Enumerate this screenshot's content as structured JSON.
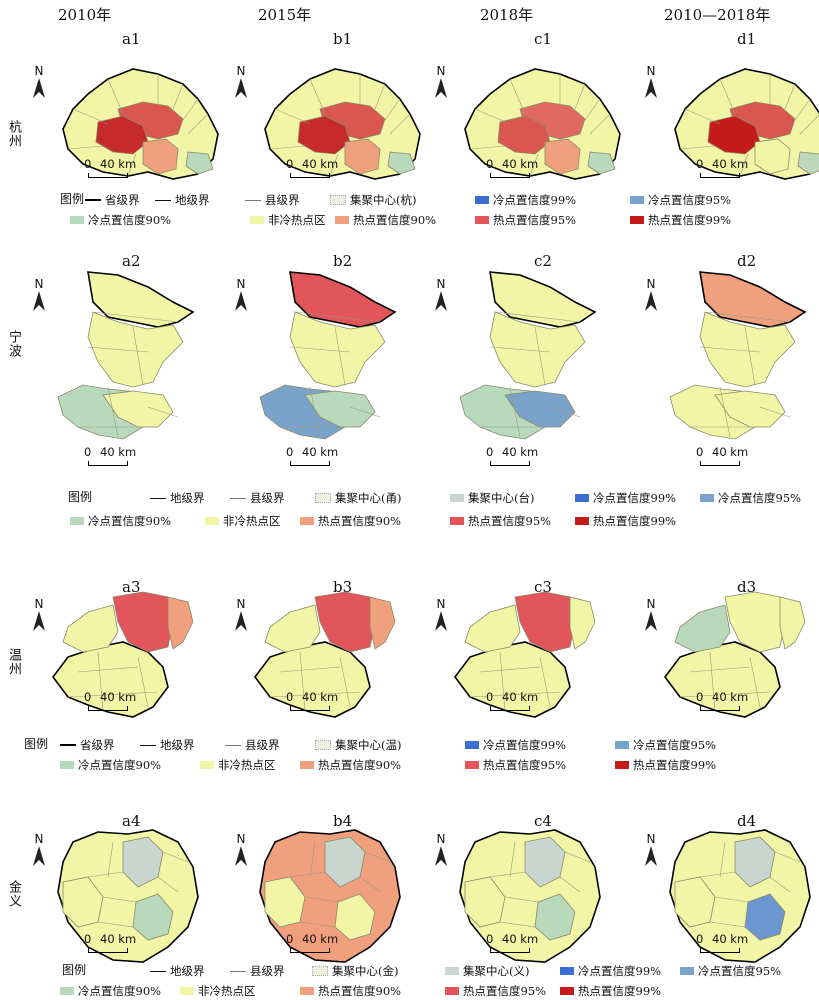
{
  "years": [
    "2010年",
    "2015年",
    "2018年",
    "2010—2018年"
  ],
  "rows": [
    {
      "city": "杭州",
      "panels": [
        {
          "label": "a1",
          "shape": "hz",
          "fills": [
            "#f2f5a5",
            "#d9574f",
            "#c72a2a",
            "#f0a07d",
            "#b9d9bc"
          ]
        },
        {
          "label": "b1",
          "shape": "hz",
          "fills": [
            "#f2f5a5",
            "#d9574f",
            "#c72a2a",
            "#f0a07d",
            "#b9d9bc"
          ]
        },
        {
          "label": "c1",
          "shape": "hz",
          "fills": [
            "#f2f5a5",
            "#e06a62",
            "#d9574f",
            "#f0a07d",
            "#b9d9bc"
          ]
        },
        {
          "label": "d1",
          "shape": "hz",
          "fills": [
            "#f2f5a5",
            "#d9574f",
            "#c41a1a",
            "#f2f5a5",
            "#bcd8b8"
          ]
        }
      ],
      "legend": {
        "title": "图例",
        "items": [
          {
            "kind": "line-thick",
            "text": "省级界"
          },
          {
            "kind": "line-mid",
            "text": "地级界"
          },
          {
            "kind": "line-thin",
            "text": "县级界"
          },
          {
            "kind": "dots",
            "color": "#efefe0",
            "text": "集聚中心(杭)"
          },
          {
            "kind": "swatch",
            "color": "#3a6ed2",
            "text": "冷点置信度99%"
          },
          {
            "kind": "swatch",
            "color": "#7aa3cc",
            "text": "冷点置信度95%"
          },
          {
            "kind": "swatch",
            "color": "#b9d9bc",
            "text": "冷点置信度90%"
          },
          {
            "kind": "swatch",
            "color": "#f2f5a5",
            "text": "非冷热点区"
          },
          {
            "kind": "swatch",
            "color": "#f0a07d",
            "text": "热点置信度90%"
          },
          {
            "kind": "swatch",
            "color": "#e2555a",
            "text": "热点置信度95%"
          },
          {
            "kind": "swatch",
            "color": "#c41a1a",
            "text": "热点置信度99%"
          }
        ]
      }
    },
    {
      "city": "宁波",
      "panels": [
        {
          "label": "a2",
          "shape": "nb",
          "fills": [
            "#f2f5a5",
            "#f2f5a5",
            "#b9d9bc",
            "#f2f5a5"
          ]
        },
        {
          "label": "b2",
          "shape": "nb",
          "fills": [
            "#e2555a",
            "#f2f5a5",
            "#7aa3cc",
            "#b9d9bc"
          ]
        },
        {
          "label": "c2",
          "shape": "nb",
          "fills": [
            "#f2f5a5",
            "#f2f5a5",
            "#b9d9bc",
            "#7aa3cc"
          ]
        },
        {
          "label": "d2",
          "shape": "nb",
          "fills": [
            "#f0a07d",
            "#f2f5a5",
            "#f2f5a5",
            "#f2f5a5"
          ]
        }
      ],
      "legend": {
        "title": "图例",
        "items": [
          {
            "kind": "line-mid",
            "text": "地级界"
          },
          {
            "kind": "line-thin",
            "text": "县级界"
          },
          {
            "kind": "dots",
            "color": "#efefe0",
            "text": "集聚中心(甬)"
          },
          {
            "kind": "swatch",
            "color": "#c9d6cf",
            "text": "集聚中心(台)"
          },
          {
            "kind": "swatch",
            "color": "#3a6ed2",
            "text": "冷点置信度99%"
          },
          {
            "kind": "swatch",
            "color": "#7aa3cc",
            "text": "冷点置信度95%"
          },
          {
            "kind": "swatch",
            "color": "#b9d9bc",
            "text": "冷点置信度90%"
          },
          {
            "kind": "swatch",
            "color": "#f2f5a5",
            "text": "非冷热点区"
          },
          {
            "kind": "swatch",
            "color": "#f0a07d",
            "text": "热点置信度90%"
          },
          {
            "kind": "swatch",
            "color": "#e2555a",
            "text": "热点置信度95%"
          },
          {
            "kind": "swatch",
            "color": "#c41a1a",
            "text": "热点置信度99%"
          }
        ]
      }
    },
    {
      "city": "温州",
      "panels": [
        {
          "label": "a3",
          "shape": "wz",
          "fills": [
            "#f2f5a5",
            "#e2555a",
            "#f0a07d",
            "#f2f5a5"
          ]
        },
        {
          "label": "b3",
          "shape": "wz",
          "fills": [
            "#f2f5a5",
            "#e2555a",
            "#f0a07d",
            "#f2f5a5"
          ]
        },
        {
          "label": "c3",
          "shape": "wz",
          "fills": [
            "#f2f5a5",
            "#e2555a",
            "#f2f5a5",
            "#f2f5a5"
          ]
        },
        {
          "label": "d3",
          "shape": "wz",
          "fills": [
            "#f2f5a5",
            "#f2f5a5",
            "#f2f5a5",
            "#b9d9bc"
          ]
        }
      ],
      "legend": {
        "title": "图例",
        "items": [
          {
            "kind": "line-thick",
            "text": "省级界"
          },
          {
            "kind": "line-mid",
            "text": "地级界"
          },
          {
            "kind": "line-thin",
            "text": "县级界"
          },
          {
            "kind": "dots",
            "color": "#efefe0",
            "text": "集聚中心(温)"
          },
          {
            "kind": "swatch",
            "color": "#3a6ed2",
            "text": "冷点置信度99%"
          },
          {
            "kind": "swatch",
            "color": "#7aa3cc",
            "text": "冷点置信度95%"
          },
          {
            "kind": "swatch",
            "color": "#b9d9bc",
            "text": "冷点置信度90%"
          },
          {
            "kind": "swatch",
            "color": "#f2f5a5",
            "text": "非冷热点区"
          },
          {
            "kind": "swatch",
            "color": "#f0a07d",
            "text": "热点置信度90%"
          },
          {
            "kind": "swatch",
            "color": "#e2555a",
            "text": "热点置信度95%"
          },
          {
            "kind": "swatch",
            "color": "#c41a1a",
            "text": "热点置信度99%"
          }
        ]
      }
    },
    {
      "city": "金义",
      "panels": [
        {
          "label": "a4",
          "shape": "jy",
          "fills": [
            "#f2f5a5",
            "#c9d6cf",
            "#b9d9bc",
            "#f2f5a5"
          ]
        },
        {
          "label": "b4",
          "shape": "jy",
          "fills": [
            "#f0a07d",
            "#c9d6cf",
            "#f2f5a5",
            "#f2f5a5"
          ]
        },
        {
          "label": "c4",
          "shape": "jy",
          "fills": [
            "#f2f5a5",
            "#c9d6cf",
            "#b9d9bc",
            "#f2f5a5"
          ]
        },
        {
          "label": "d4",
          "shape": "jy",
          "fills": [
            "#f2f5a5",
            "#c9d6cf",
            "#6b96d0",
            "#f2f5a5"
          ]
        }
      ],
      "legend": {
        "title": "图例",
        "items": [
          {
            "kind": "line-mid",
            "text": "地级界"
          },
          {
            "kind": "line-thin",
            "text": "县级界"
          },
          {
            "kind": "dots",
            "color": "#efefe0",
            "text": "集聚中心(金)"
          },
          {
            "kind": "swatch",
            "color": "#c9d6cf",
            "text": "集聚中心(义)"
          },
          {
            "kind": "swatch",
            "color": "#3a6ed2",
            "text": "冷点置信度99%"
          },
          {
            "kind": "swatch",
            "color": "#7aa3cc",
            "text": "冷点置信度95%"
          },
          {
            "kind": "swatch",
            "color": "#b9d9bc",
            "text": "冷点置信度90%"
          },
          {
            "kind": "swatch",
            "color": "#f2f5a5",
            "text": "非冷热点区"
          },
          {
            "kind": "swatch",
            "color": "#f0a07d",
            "text": "热点置信度90%"
          },
          {
            "kind": "swatch",
            "color": "#e2555a",
            "text": "热点置信度95%"
          },
          {
            "kind": "swatch",
            "color": "#c41a1a",
            "text": "热点置信度99%"
          }
        ]
      }
    }
  ],
  "north_label": "N",
  "scale": {
    "zero": "0",
    "dist": "40 km"
  }
}
